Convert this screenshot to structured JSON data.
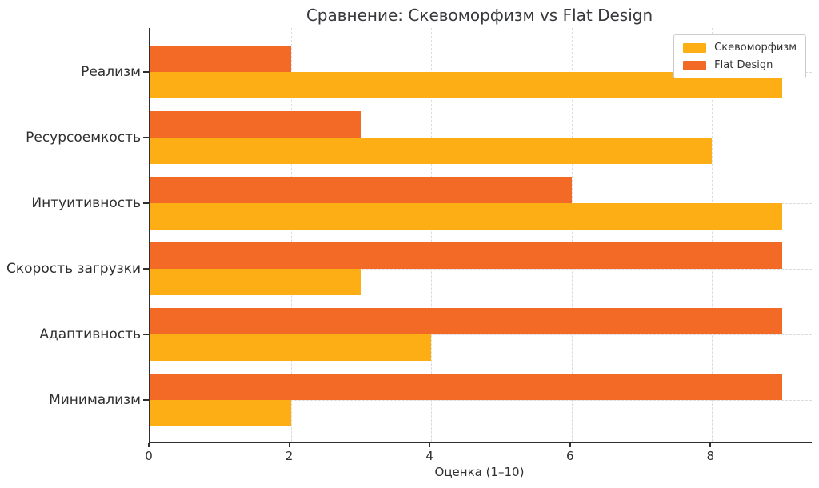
{
  "chart_data": {
    "type": "bar",
    "orientation": "horizontal",
    "title": "Сравнение: Скевоморфизм vs Flat Design",
    "xlabel": "Оценка (1–10)",
    "categories": [
      "Реализм",
      "Ресурсоемкость",
      "Интуитивность",
      "Скорость загрузки",
      "Адаптивность",
      "Минимализм"
    ],
    "series": [
      {
        "name": "Скевоморфизм",
        "color": "#FCAE14",
        "values": [
          9,
          8,
          9,
          3,
          4,
          2
        ]
      },
      {
        "name": "Flat Design",
        "color": "#F26A25",
        "values": [
          2,
          3,
          6,
          9,
          9,
          9
        ]
      }
    ],
    "bar_order_top_to_bottom": [
      "Flat Design",
      "Скевоморфизм"
    ],
    "xlim": [
      0,
      9.42
    ],
    "xticks": [
      0,
      2,
      4,
      6,
      8
    ],
    "grid": "dashed",
    "legend_position": "upper-right"
  },
  "style_colors": {
    "skeuomorphism_bar": "#FCAE14",
    "flat_design_bar": "#F26A25",
    "axis": "#2f2f2f",
    "gridline": "#dcdcdc",
    "text": "#333333",
    "legend_border": "#cccccc"
  }
}
